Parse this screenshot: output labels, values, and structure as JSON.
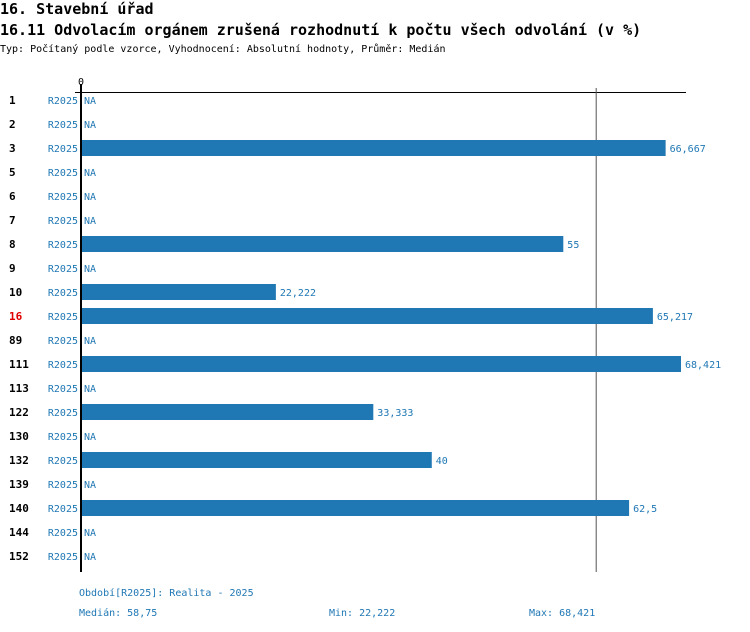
{
  "header": {
    "title": "16. Stavební úřad",
    "subtitle": "16.11 Odvolacím orgánem zrušená rozhodnutí k počtu všech odvolání (v %)",
    "info": "Typ: Počítaný podle vzorce, Vyhodnocení: Absolutní hodnoty, Průměr: Medián"
  },
  "chart_data": {
    "type": "bar",
    "orientation": "horizontal",
    "title": "16.11 Odvolacím orgánem zrušená rozhodnutí k počtu všech odvolání (v %)",
    "x_tick_label": "0",
    "xlim": [
      0,
      68.421
    ],
    "bar_color": "#1f77b4",
    "highlight_color": "#e00000",
    "series_label": "R2025",
    "categories": [
      "1",
      "2",
      "3",
      "5",
      "6",
      "7",
      "8",
      "9",
      "10",
      "16",
      "89",
      "111",
      "113",
      "122",
      "130",
      "132",
      "139",
      "140",
      "144",
      "152"
    ],
    "highlight": "16",
    "values": [
      null,
      null,
      66.667,
      null,
      null,
      null,
      55,
      null,
      22.222,
      65.217,
      null,
      68.421,
      null,
      33.333,
      null,
      40,
      null,
      62.5,
      null,
      null
    ],
    "labels": [
      "NA",
      "NA",
      "66,667",
      "NA",
      "NA",
      "NA",
      "55",
      "NA",
      "22,222",
      "65,217",
      "NA",
      "68,421",
      "NA",
      "33,333",
      "NA",
      "40",
      "NA",
      "62,5",
      "NA",
      "NA"
    ],
    "median": 58.75
  },
  "footer": {
    "period": "Období[R2025]: Realita - 2025",
    "median": "Medián: 58,75",
    "min": "Min: 22,222",
    "max": "Max: 68,421"
  }
}
